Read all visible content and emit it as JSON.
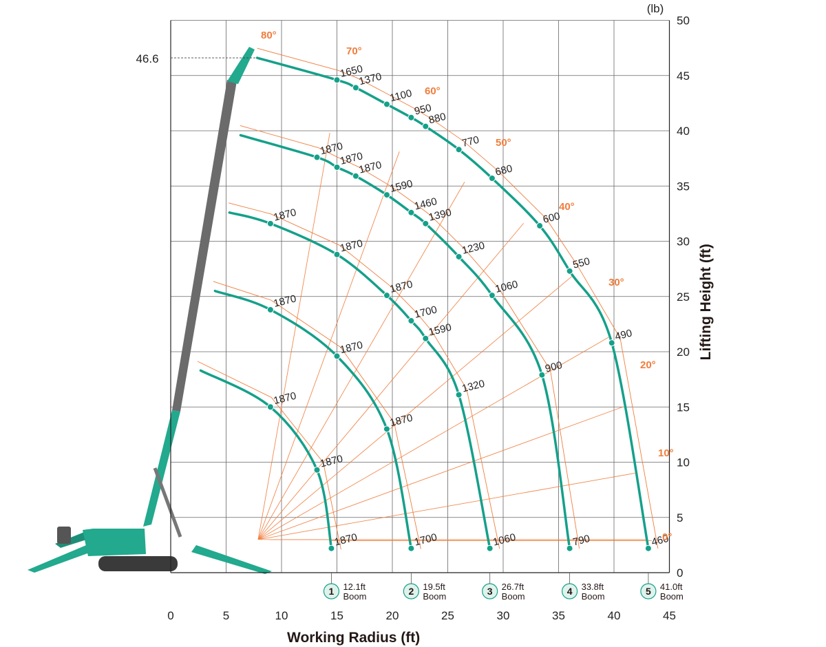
{
  "chart_data": {
    "type": "line",
    "x_axis": {
      "label": "Working Radius (ft)",
      "range": [
        0,
        45
      ],
      "ticks": [
        "0",
        "5",
        "10",
        "15",
        "20",
        "25",
        "30",
        "35",
        "40",
        "45"
      ]
    },
    "y_axis": {
      "label": "Lifting Height (ft)",
      "range": [
        0,
        50
      ],
      "ticks": [
        "0",
        "5",
        "10",
        "15",
        "20",
        "25",
        "30",
        "35",
        "40",
        "45",
        "50"
      ]
    },
    "load_unit": "(lb)",
    "max_height_label": "46.6",
    "grid": true,
    "colors": {
      "curve": "#15a08a",
      "angle_line": "#f07d3c",
      "grid": "#666666",
      "machine": "#22a98e",
      "boom_dark": "#6b6b6b"
    },
    "angle_labels": [
      "0°",
      "10°",
      "20°",
      "30°",
      "40°",
      "50°",
      "60°",
      "70°",
      "80°"
    ],
    "booms": [
      {
        "number": "1",
        "length": "12.1ft",
        "word": "Boom",
        "points": [
          {
            "x": 14.5,
            "y": 2.2,
            "load": "1870"
          },
          {
            "x": 13.2,
            "y": 9.3,
            "load": "1870"
          },
          {
            "x": 9.0,
            "y": 15.0,
            "load": "1870"
          },
          {
            "x": 2.7,
            "y": 18.3
          }
        ]
      },
      {
        "number": "2",
        "length": "19.5ft",
        "word": "Boom",
        "points": [
          {
            "x": 21.7,
            "y": 2.2,
            "load": "1700"
          },
          {
            "x": 19.5,
            "y": 13.0,
            "load": "1870"
          },
          {
            "x": 15.0,
            "y": 19.6,
            "load": "1870"
          },
          {
            "x": 9.0,
            "y": 23.8,
            "load": "1870"
          },
          {
            "x": 4.0,
            "y": 25.5
          }
        ]
      },
      {
        "number": "3",
        "length": "26.7ft",
        "word": "Boom",
        "points": [
          {
            "x": 28.8,
            "y": 2.2,
            "load": "1060"
          },
          {
            "x": 26.0,
            "y": 16.1,
            "load": "1320"
          },
          {
            "x": 23.0,
            "y": 21.2,
            "load": "1590"
          },
          {
            "x": 21.7,
            "y": 22.8,
            "load": "1700"
          },
          {
            "x": 19.5,
            "y": 25.1,
            "load": "1870"
          },
          {
            "x": 15.0,
            "y": 28.8,
            "load": "1870"
          },
          {
            "x": 9.0,
            "y": 31.6,
            "load": "1870"
          },
          {
            "x": 5.3,
            "y": 32.6
          }
        ]
      },
      {
        "number": "4",
        "length": "33.8ft",
        "word": "Boom",
        "points": [
          {
            "x": 36.0,
            "y": 2.2,
            "load": "790"
          },
          {
            "x": 33.5,
            "y": 17.9,
            "load": "900"
          },
          {
            "x": 29.0,
            "y": 25.1,
            "load": "1060"
          },
          {
            "x": 26.0,
            "y": 28.6,
            "load": "1230"
          },
          {
            "x": 23.0,
            "y": 31.6,
            "load": "1390"
          },
          {
            "x": 21.7,
            "y": 32.6,
            "load": "1460"
          },
          {
            "x": 19.5,
            "y": 34.2,
            "load": "1590"
          },
          {
            "x": 16.7,
            "y": 35.9,
            "load": "1870"
          },
          {
            "x": 15.0,
            "y": 36.7,
            "load": "1870"
          },
          {
            "x": 13.2,
            "y": 37.6,
            "load": "1870"
          },
          {
            "x": 6.3,
            "y": 39.6
          }
        ]
      },
      {
        "number": "5",
        "length": "41.0ft",
        "word": "Boom",
        "points": [
          {
            "x": 43.1,
            "y": 2.2,
            "load": "460"
          },
          {
            "x": 39.8,
            "y": 20.8,
            "load": "490"
          },
          {
            "x": 36.0,
            "y": 27.3,
            "load": "550"
          },
          {
            "x": 33.3,
            "y": 31.4,
            "load": "600"
          },
          {
            "x": 29.0,
            "y": 35.7,
            "load": "680"
          },
          {
            "x": 26.0,
            "y": 38.3,
            "load": "770"
          },
          {
            "x": 23.0,
            "y": 40.4,
            "load": "880"
          },
          {
            "x": 21.7,
            "y": 41.2,
            "load": "950"
          },
          {
            "x": 19.5,
            "y": 42.4,
            "load": "1100"
          },
          {
            "x": 16.7,
            "y": 43.9,
            "load": "1370"
          },
          {
            "x": 15.0,
            "y": 44.6,
            "load": "1650"
          },
          {
            "x": 7.8,
            "y": 46.6
          }
        ]
      }
    ]
  }
}
